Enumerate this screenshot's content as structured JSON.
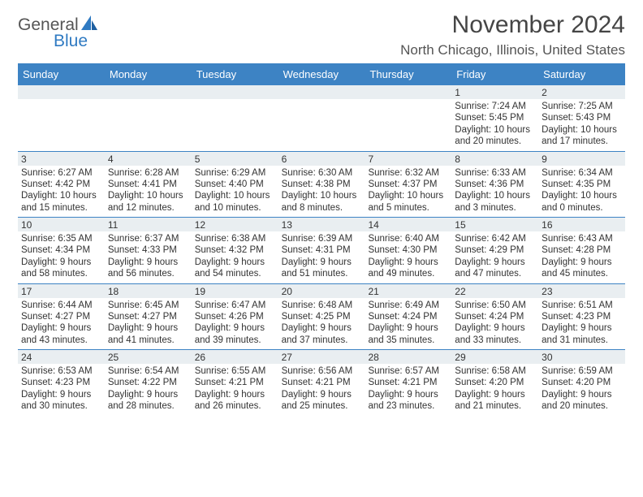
{
  "logo": {
    "text1": "General",
    "text2": "Blue"
  },
  "title": "November 2024",
  "location": "North Chicago, Illinois, United States",
  "colors": {
    "header_bg": "#3d83c4",
    "daynum_bg": "#e9eef1",
    "border": "#3d83c4",
    "logo_blue": "#2f7ac2"
  },
  "day_names": [
    "Sunday",
    "Monday",
    "Tuesday",
    "Wednesday",
    "Thursday",
    "Friday",
    "Saturday"
  ],
  "weeks": [
    [
      {
        "n": "",
        "sunrise": "",
        "sunset": "",
        "daylight1": "",
        "daylight2": ""
      },
      {
        "n": "",
        "sunrise": "",
        "sunset": "",
        "daylight1": "",
        "daylight2": ""
      },
      {
        "n": "",
        "sunrise": "",
        "sunset": "",
        "daylight1": "",
        "daylight2": ""
      },
      {
        "n": "",
        "sunrise": "",
        "sunset": "",
        "daylight1": "",
        "daylight2": ""
      },
      {
        "n": "",
        "sunrise": "",
        "sunset": "",
        "daylight1": "",
        "daylight2": ""
      },
      {
        "n": "1",
        "sunrise": "Sunrise: 7:24 AM",
        "sunset": "Sunset: 5:45 PM",
        "daylight1": "Daylight: 10 hours",
        "daylight2": "and 20 minutes."
      },
      {
        "n": "2",
        "sunrise": "Sunrise: 7:25 AM",
        "sunset": "Sunset: 5:43 PM",
        "daylight1": "Daylight: 10 hours",
        "daylight2": "and 17 minutes."
      }
    ],
    [
      {
        "n": "3",
        "sunrise": "Sunrise: 6:27 AM",
        "sunset": "Sunset: 4:42 PM",
        "daylight1": "Daylight: 10 hours",
        "daylight2": "and 15 minutes."
      },
      {
        "n": "4",
        "sunrise": "Sunrise: 6:28 AM",
        "sunset": "Sunset: 4:41 PM",
        "daylight1": "Daylight: 10 hours",
        "daylight2": "and 12 minutes."
      },
      {
        "n": "5",
        "sunrise": "Sunrise: 6:29 AM",
        "sunset": "Sunset: 4:40 PM",
        "daylight1": "Daylight: 10 hours",
        "daylight2": "and 10 minutes."
      },
      {
        "n": "6",
        "sunrise": "Sunrise: 6:30 AM",
        "sunset": "Sunset: 4:38 PM",
        "daylight1": "Daylight: 10 hours",
        "daylight2": "and 8 minutes."
      },
      {
        "n": "7",
        "sunrise": "Sunrise: 6:32 AM",
        "sunset": "Sunset: 4:37 PM",
        "daylight1": "Daylight: 10 hours",
        "daylight2": "and 5 minutes."
      },
      {
        "n": "8",
        "sunrise": "Sunrise: 6:33 AM",
        "sunset": "Sunset: 4:36 PM",
        "daylight1": "Daylight: 10 hours",
        "daylight2": "and 3 minutes."
      },
      {
        "n": "9",
        "sunrise": "Sunrise: 6:34 AM",
        "sunset": "Sunset: 4:35 PM",
        "daylight1": "Daylight: 10 hours",
        "daylight2": "and 0 minutes."
      }
    ],
    [
      {
        "n": "10",
        "sunrise": "Sunrise: 6:35 AM",
        "sunset": "Sunset: 4:34 PM",
        "daylight1": "Daylight: 9 hours",
        "daylight2": "and 58 minutes."
      },
      {
        "n": "11",
        "sunrise": "Sunrise: 6:37 AM",
        "sunset": "Sunset: 4:33 PM",
        "daylight1": "Daylight: 9 hours",
        "daylight2": "and 56 minutes."
      },
      {
        "n": "12",
        "sunrise": "Sunrise: 6:38 AM",
        "sunset": "Sunset: 4:32 PM",
        "daylight1": "Daylight: 9 hours",
        "daylight2": "and 54 minutes."
      },
      {
        "n": "13",
        "sunrise": "Sunrise: 6:39 AM",
        "sunset": "Sunset: 4:31 PM",
        "daylight1": "Daylight: 9 hours",
        "daylight2": "and 51 minutes."
      },
      {
        "n": "14",
        "sunrise": "Sunrise: 6:40 AM",
        "sunset": "Sunset: 4:30 PM",
        "daylight1": "Daylight: 9 hours",
        "daylight2": "and 49 minutes."
      },
      {
        "n": "15",
        "sunrise": "Sunrise: 6:42 AM",
        "sunset": "Sunset: 4:29 PM",
        "daylight1": "Daylight: 9 hours",
        "daylight2": "and 47 minutes."
      },
      {
        "n": "16",
        "sunrise": "Sunrise: 6:43 AM",
        "sunset": "Sunset: 4:28 PM",
        "daylight1": "Daylight: 9 hours",
        "daylight2": "and 45 minutes."
      }
    ],
    [
      {
        "n": "17",
        "sunrise": "Sunrise: 6:44 AM",
        "sunset": "Sunset: 4:27 PM",
        "daylight1": "Daylight: 9 hours",
        "daylight2": "and 43 minutes."
      },
      {
        "n": "18",
        "sunrise": "Sunrise: 6:45 AM",
        "sunset": "Sunset: 4:27 PM",
        "daylight1": "Daylight: 9 hours",
        "daylight2": "and 41 minutes."
      },
      {
        "n": "19",
        "sunrise": "Sunrise: 6:47 AM",
        "sunset": "Sunset: 4:26 PM",
        "daylight1": "Daylight: 9 hours",
        "daylight2": "and 39 minutes."
      },
      {
        "n": "20",
        "sunrise": "Sunrise: 6:48 AM",
        "sunset": "Sunset: 4:25 PM",
        "daylight1": "Daylight: 9 hours",
        "daylight2": "and 37 minutes."
      },
      {
        "n": "21",
        "sunrise": "Sunrise: 6:49 AM",
        "sunset": "Sunset: 4:24 PM",
        "daylight1": "Daylight: 9 hours",
        "daylight2": "and 35 minutes."
      },
      {
        "n": "22",
        "sunrise": "Sunrise: 6:50 AM",
        "sunset": "Sunset: 4:24 PM",
        "daylight1": "Daylight: 9 hours",
        "daylight2": "and 33 minutes."
      },
      {
        "n": "23",
        "sunrise": "Sunrise: 6:51 AM",
        "sunset": "Sunset: 4:23 PM",
        "daylight1": "Daylight: 9 hours",
        "daylight2": "and 31 minutes."
      }
    ],
    [
      {
        "n": "24",
        "sunrise": "Sunrise: 6:53 AM",
        "sunset": "Sunset: 4:23 PM",
        "daylight1": "Daylight: 9 hours",
        "daylight2": "and 30 minutes."
      },
      {
        "n": "25",
        "sunrise": "Sunrise: 6:54 AM",
        "sunset": "Sunset: 4:22 PM",
        "daylight1": "Daylight: 9 hours",
        "daylight2": "and 28 minutes."
      },
      {
        "n": "26",
        "sunrise": "Sunrise: 6:55 AM",
        "sunset": "Sunset: 4:21 PM",
        "daylight1": "Daylight: 9 hours",
        "daylight2": "and 26 minutes."
      },
      {
        "n": "27",
        "sunrise": "Sunrise: 6:56 AM",
        "sunset": "Sunset: 4:21 PM",
        "daylight1": "Daylight: 9 hours",
        "daylight2": "and 25 minutes."
      },
      {
        "n": "28",
        "sunrise": "Sunrise: 6:57 AM",
        "sunset": "Sunset: 4:21 PM",
        "daylight1": "Daylight: 9 hours",
        "daylight2": "and 23 minutes."
      },
      {
        "n": "29",
        "sunrise": "Sunrise: 6:58 AM",
        "sunset": "Sunset: 4:20 PM",
        "daylight1": "Daylight: 9 hours",
        "daylight2": "and 21 minutes."
      },
      {
        "n": "30",
        "sunrise": "Sunrise: 6:59 AM",
        "sunset": "Sunset: 4:20 PM",
        "daylight1": "Daylight: 9 hours",
        "daylight2": "and 20 minutes."
      }
    ]
  ]
}
